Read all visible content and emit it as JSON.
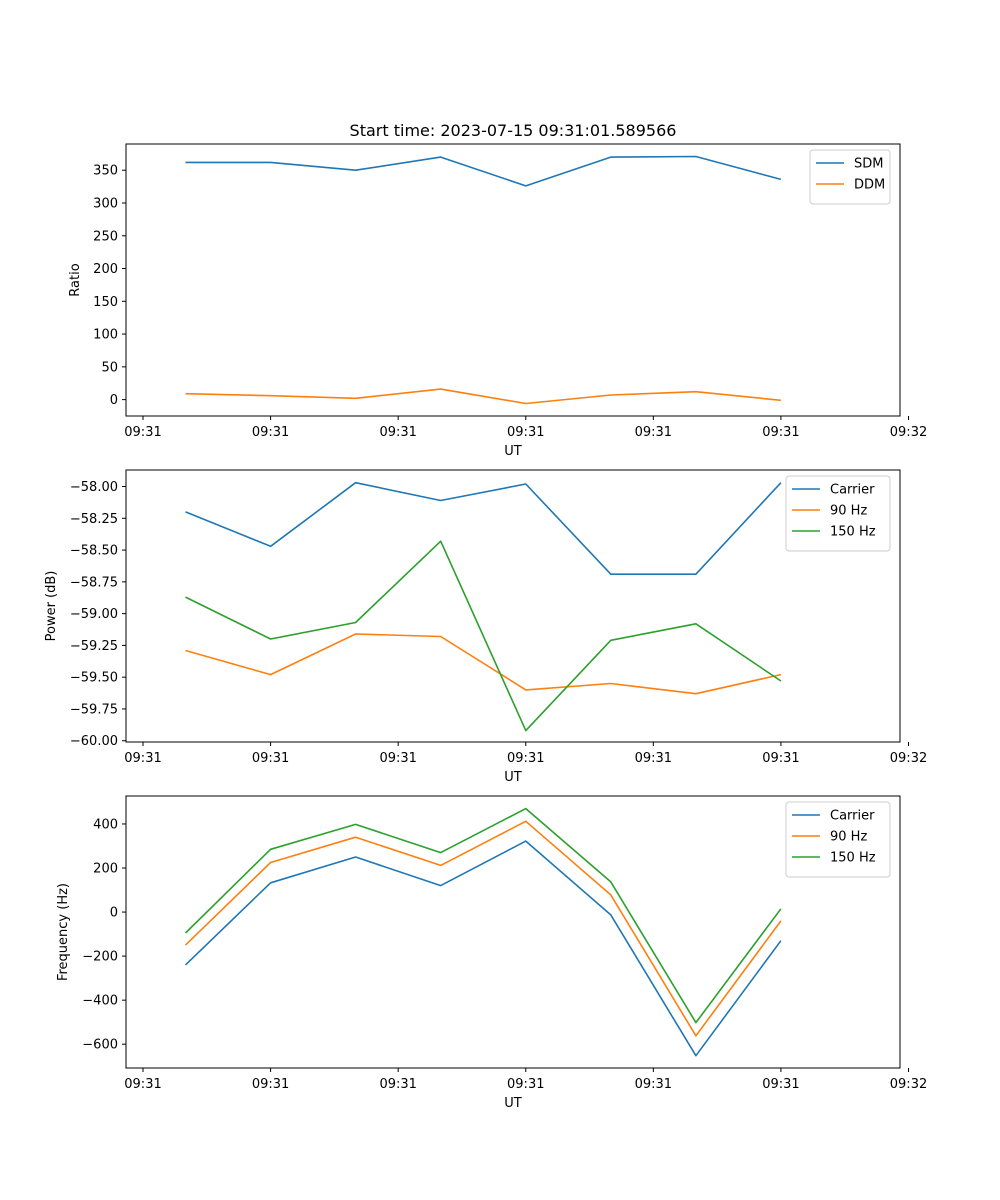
{
  "chart_data": [
    {
      "type": "line",
      "title": "Start time: 2023-07-15 09:31:01.589566",
      "xlabel": "UT",
      "ylabel": "Ratio",
      "x": [
        1,
        2,
        3,
        4,
        5,
        6,
        7,
        8
      ],
      "xlim": [
        0.3,
        9.4
      ],
      "xticks": [
        0.5,
        2,
        3.5,
        5,
        6.5,
        8,
        9.5
      ],
      "xtick_labels": [
        "09:31",
        "09:31",
        "09:31",
        "09:31",
        "09:31",
        "09:31",
        "09:32"
      ],
      "ylim": [
        -25,
        390
      ],
      "yticks": [
        0,
        50,
        100,
        150,
        200,
        250,
        300,
        350
      ],
      "ytick_labels": [
        "0",
        "50",
        "100",
        "150",
        "200",
        "250",
        "300",
        "350"
      ],
      "legend_position": "top-right",
      "series": [
        {
          "name": "SDM",
          "color": "#1f77b4",
          "values": [
            362,
            362,
            350,
            370,
            326,
            370,
            371,
            336
          ]
        },
        {
          "name": "DDM",
          "color": "#ff7f0e",
          "values": [
            9,
            6,
            2,
            16,
            -6,
            7,
            12,
            -1
          ]
        }
      ]
    },
    {
      "type": "line",
      "title": "",
      "xlabel": "UT",
      "ylabel": "Power (dB)",
      "x": [
        1,
        2,
        3,
        4,
        5,
        6,
        7,
        8
      ],
      "xlim": [
        0.3,
        9.4
      ],
      "xticks": [
        0.5,
        2,
        3.5,
        5,
        6.5,
        8,
        9.5
      ],
      "xtick_labels": [
        "09:31",
        "09:31",
        "09:31",
        "09:31",
        "09:31",
        "09:31",
        "09:32"
      ],
      "ylim": [
        -60.01,
        -57.87
      ],
      "yticks": [
        -60.0,
        -59.75,
        -59.5,
        -59.25,
        -59.0,
        -58.75,
        -58.5,
        -58.25,
        -58.0
      ],
      "ytick_labels": [
        "−60.00",
        "−59.75",
        "−59.50",
        "−59.25",
        "−59.00",
        "−58.75",
        "−58.50",
        "−58.25",
        "−58.00"
      ],
      "legend_position": "top-right",
      "series": [
        {
          "name": "Carrier",
          "color": "#1f77b4",
          "values": [
            -58.2,
            -58.47,
            -57.97,
            -58.11,
            -57.98,
            -58.69,
            -58.69,
            -57.97
          ]
        },
        {
          "name": "90 Hz",
          "color": "#ff7f0e",
          "values": [
            -59.29,
            -59.48,
            -59.16,
            -59.18,
            -59.6,
            -59.55,
            -59.63,
            -59.48
          ]
        },
        {
          "name": "150 Hz",
          "color": "#2ca02c",
          "values": [
            -58.87,
            -59.2,
            -59.07,
            -58.43,
            -59.92,
            -59.21,
            -59.08,
            -59.53
          ]
        }
      ]
    },
    {
      "type": "line",
      "title": "",
      "xlabel": "UT",
      "ylabel": "Frequency (Hz)",
      "x": [
        1,
        2,
        3,
        4,
        5,
        6,
        7,
        8
      ],
      "xlim": [
        0.3,
        9.4
      ],
      "xticks": [
        0.5,
        2,
        3.5,
        5,
        6.5,
        8,
        9.5
      ],
      "xtick_labels": [
        "09:31",
        "09:31",
        "09:31",
        "09:31",
        "09:31",
        "09:31",
        "09:32"
      ],
      "ylim": [
        -708,
        527
      ],
      "yticks": [
        -600,
        -400,
        -200,
        0,
        200,
        400
      ],
      "ytick_labels": [
        "−600",
        "−400",
        "−200",
        "0",
        "200",
        "400"
      ],
      "legend_position": "top-right",
      "series": [
        {
          "name": "Carrier",
          "color": "#1f77b4",
          "values": [
            -240,
            133,
            250,
            120,
            322,
            -13,
            -652,
            -130
          ]
        },
        {
          "name": "90 Hz",
          "color": "#ff7f0e",
          "values": [
            -150,
            225,
            340,
            212,
            412,
            78,
            -562,
            -40
          ]
        },
        {
          "name": "150 Hz",
          "color": "#2ca02c",
          "values": [
            -95,
            285,
            398,
            270,
            470,
            137,
            -502,
            15
          ]
        }
      ]
    }
  ]
}
